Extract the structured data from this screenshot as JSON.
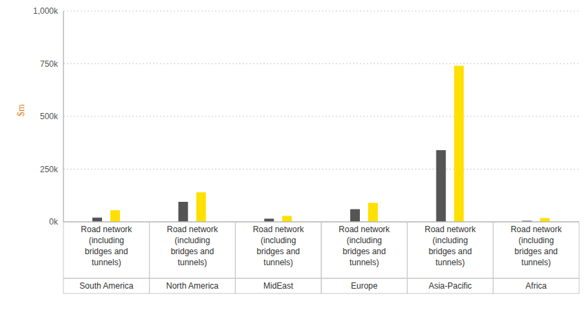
{
  "chart_data": {
    "type": "bar",
    "y_label": "$m",
    "categories": [
      "South America",
      "North America",
      "MidEast",
      "Europe",
      "Asia-Pacific",
      "Africa"
    ],
    "category_sublabels": [
      "Road network (including bridges and tunnels)",
      "Road network (including bridges and tunnels)",
      "Road network (including bridges and tunnels)",
      "Road network (including bridges and tunnels)",
      "Road network (including bridges and tunnels)",
      "Road network (including bridges and tunnels)"
    ],
    "series": [
      {
        "color": "#555555",
        "values": [
          20000,
          95000,
          15000,
          60000,
          340000,
          5000
        ]
      },
      {
        "color": "#ffe000",
        "values": [
          55000,
          140000,
          28000,
          90000,
          740000,
          18000
        ]
      }
    ],
    "ylim": [
      0,
      1000000
    ],
    "yticks": [
      {
        "value": 0,
        "label": "0k"
      },
      {
        "value": 250000,
        "label": "250k"
      },
      {
        "value": 500000,
        "label": "500k"
      },
      {
        "value": 750000,
        "label": "750k"
      },
      {
        "value": 1000000,
        "label": "1,000k"
      }
    ],
    "grid": true
  }
}
